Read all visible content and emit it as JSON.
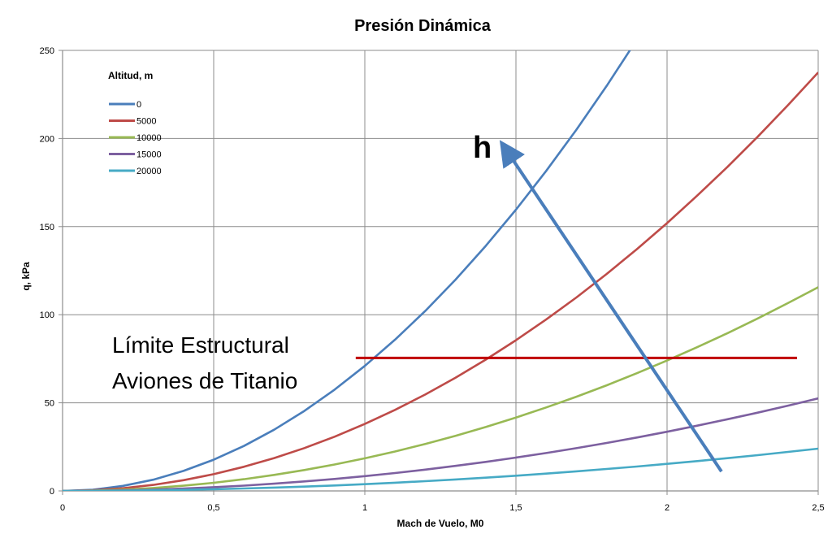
{
  "chart_data": {
    "type": "line",
    "title": "Presión Dinámica",
    "xlabel": "Mach de Vuelo, M0",
    "ylabel": "q, kPa",
    "xlim": [
      0,
      2.5
    ],
    "ylim": [
      0,
      250
    ],
    "x_ticks": [
      "0",
      "0,5",
      "1",
      "1,5",
      "2",
      "2,5"
    ],
    "y_ticks": [
      "0",
      "50",
      "100",
      "150",
      "200",
      "250"
    ],
    "grid": true,
    "legend": {
      "title": "Altitud, m",
      "placement": "top-left"
    },
    "x": [
      0,
      0.1,
      0.2,
      0.3,
      0.4,
      0.5,
      0.6,
      0.7,
      0.8,
      0.9,
      1.0,
      1.1,
      1.2,
      1.3,
      1.4,
      1.5,
      1.6,
      1.7,
      1.8,
      1.9,
      2.0,
      2.1,
      2.2,
      2.3,
      2.4,
      2.5
    ],
    "series": [
      {
        "name": "0",
        "color": "#4A7EBB",
        "values": [
          0,
          0.71,
          2.84,
          6.38,
          11.35,
          17.73,
          25.53,
          34.75,
          45.39,
          57.45,
          70.93,
          85.82,
          102.1,
          119.9,
          139.0,
          159.6,
          181.6,
          205.0,
          229.8,
          256.1,
          null,
          null,
          null,
          null,
          null,
          null
        ]
      },
      {
        "name": "5000",
        "color": "#BE4B48",
        "values": [
          0,
          0.38,
          1.52,
          3.42,
          6.08,
          9.5,
          13.68,
          18.62,
          24.32,
          30.78,
          38.0,
          45.98,
          54.72,
          64.22,
          74.48,
          85.5,
          97.28,
          109.8,
          123.1,
          137.2,
          152.0,
          167.6,
          183.9,
          201.0,
          218.9,
          237.5
        ]
      },
      {
        "name": "10000",
        "color": "#98B954",
        "values": [
          0,
          0.18,
          0.74,
          1.67,
          2.96,
          4.63,
          6.66,
          9.07,
          11.84,
          14.99,
          18.5,
          22.39,
          26.64,
          31.27,
          36.26,
          41.63,
          47.36,
          53.47,
          59.94,
          66.79,
          74.0,
          81.59,
          89.54,
          97.87,
          106.6,
          115.6
        ]
      },
      {
        "name": "15000",
        "color": "#7D60A0",
        "values": [
          0,
          0.08,
          0.34,
          0.76,
          1.34,
          2.1,
          3.02,
          4.12,
          5.38,
          6.8,
          8.4,
          10.16,
          12.1,
          14.2,
          16.46,
          18.9,
          21.5,
          24.28,
          27.22,
          30.32,
          33.6,
          37.04,
          40.66,
          44.44,
          48.38,
          52.5
        ]
      },
      {
        "name": "20000",
        "color": "#46AAC5",
        "values": [
          0,
          0.04,
          0.15,
          0.35,
          0.62,
          0.96,
          1.38,
          1.88,
          2.46,
          3.11,
          3.84,
          4.65,
          5.53,
          6.49,
          7.53,
          8.64,
          9.83,
          11.1,
          12.44,
          13.86,
          15.36,
          16.93,
          18.58,
          20.31,
          22.12,
          24.0
        ]
      }
    ],
    "annotations": {
      "limit_text_line1": "Límite Estructural",
      "limit_text_line2": "Aviones de Titanio",
      "limit_value": 75.5,
      "limit_x_range": [
        0.97,
        2.43
      ],
      "limit_color": "#C00000",
      "arrow_label": "h",
      "arrow_color": "#4A7EBB",
      "arrow_from": [
        2.18,
        11
      ],
      "arrow_to": [
        1.47,
        193
      ]
    }
  }
}
